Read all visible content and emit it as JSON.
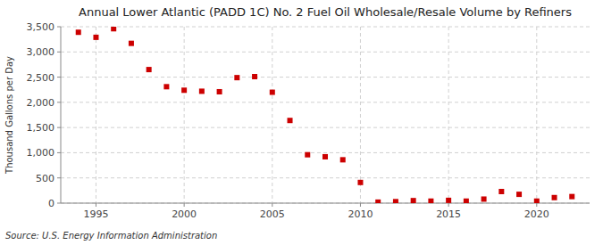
{
  "chart_data": {
    "type": "scatter",
    "title": "Annual Lower Atlantic (PADD 1C) No. 2 Fuel Oil Wholesale/Resale Volume by Refiners",
    "ylabel": "Thousand Gallons per Day",
    "source": "Source: U.S. Energy Information Administration",
    "x": [
      1994,
      1995,
      1996,
      1997,
      1998,
      1999,
      2000,
      2001,
      2002,
      2003,
      2004,
      2005,
      2006,
      2007,
      2008,
      2009,
      2010,
      2011,
      2012,
      2013,
      2014,
      2015,
      2016,
      2017,
      2018,
      2019,
      2020,
      2021,
      2022
    ],
    "values": [
      3390,
      3290,
      3460,
      3170,
      2650,
      2310,
      2240,
      2220,
      2210,
      2490,
      2510,
      2200,
      1640,
      960,
      920,
      860,
      410,
      20,
      30,
      50,
      40,
      55,
      40,
      80,
      230,
      175,
      40,
      110,
      130
    ],
    "color": "#CC0000",
    "marker": "square",
    "xlim": [
      1993.0,
      2023.0
    ],
    "xticks": [
      1995,
      2000,
      2005,
      2010,
      2015,
      2020
    ],
    "ylim": [
      0,
      3500
    ],
    "yticks": [
      0,
      500,
      {
        "value": 1000,
        "label": "1,000"
      },
      {
        "value": 1500,
        "label": "1,500"
      },
      {
        "value": 2000,
        "label": "2,000"
      },
      {
        "value": 2500,
        "label": "2,500"
      },
      {
        "value": 3000,
        "label": "3,000"
      },
      {
        "value": 3500,
        "label": "3,500"
      }
    ],
    "grid": true
  }
}
